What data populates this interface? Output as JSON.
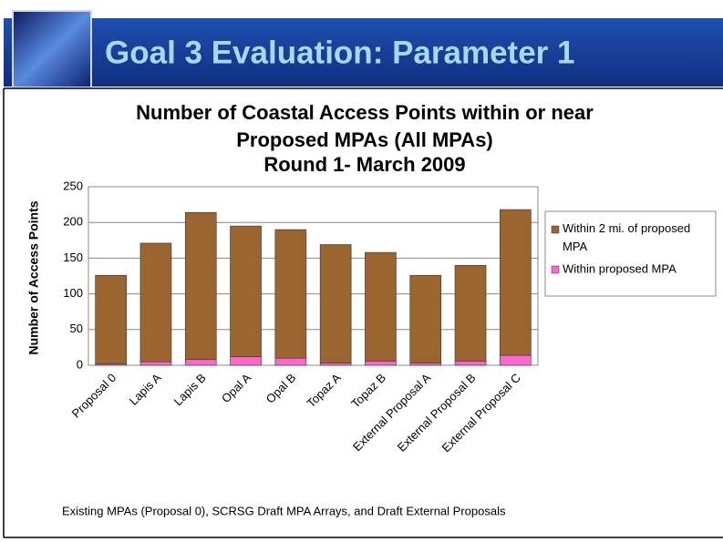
{
  "slide_title": "Goal 3 Evaluation: Parameter 1",
  "footer": "Existing MPAs (Proposal 0), SCRSG Draft MPA Arrays, and Draft External Proposals",
  "chart_data": {
    "type": "stacked_bar",
    "title": [
      "Number of Coastal Access Points within or near",
      "Proposed MPAs (All MPAs)",
      "Round 1- March 2009"
    ],
    "y_label": "Number of Access Points",
    "categories": [
      "Proposal 0",
      "Lapis A",
      "Lapis B",
      "Opal A",
      "Opal B",
      "Topaz A",
      "Topaz B",
      "External Proposal A",
      "External Proposal B",
      "External Proposal C"
    ],
    "series": [
      {
        "name": "Within 2 mi. of proposed MPA",
        "color": "#9b6530",
        "values": [
          124,
          166,
          206,
          183,
          180,
          166,
          152,
          123,
          134,
          204
        ]
      },
      {
        "name": "Within proposed MPA",
        "color": "#ff66cc",
        "values": [
          2,
          5,
          8,
          12,
          10,
          3,
          6,
          3,
          6,
          14
        ]
      }
    ],
    "ylim": [
      0,
      250
    ],
    "yticks": [
      0,
      50,
      100,
      150,
      200,
      250
    ],
    "grid": true,
    "legend": "right"
  }
}
